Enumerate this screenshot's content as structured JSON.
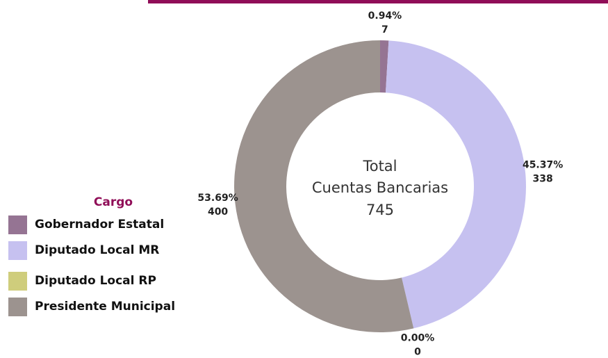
{
  "chart_data": {
    "type": "donut",
    "categories": [
      "Gobernador Estatal",
      "Diputado Local MR",
      "Diputado Local RP",
      "Presidente Municipal"
    ],
    "values": [
      7,
      338,
      0,
      400
    ],
    "shares": [
      0.94,
      45.37,
      0.0,
      53.69
    ],
    "share_labels": [
      "0.94%",
      "45.37%",
      "0.00%",
      "53.69%"
    ],
    "colors": [
      "#957493",
      "#c6c1f0",
      "#cfcd7c",
      "#9c938f"
    ],
    "legend_title": "Cargo",
    "center_text": [
      "Total",
      "Cuentas Bancarias"
    ],
    "total": 745
  }
}
